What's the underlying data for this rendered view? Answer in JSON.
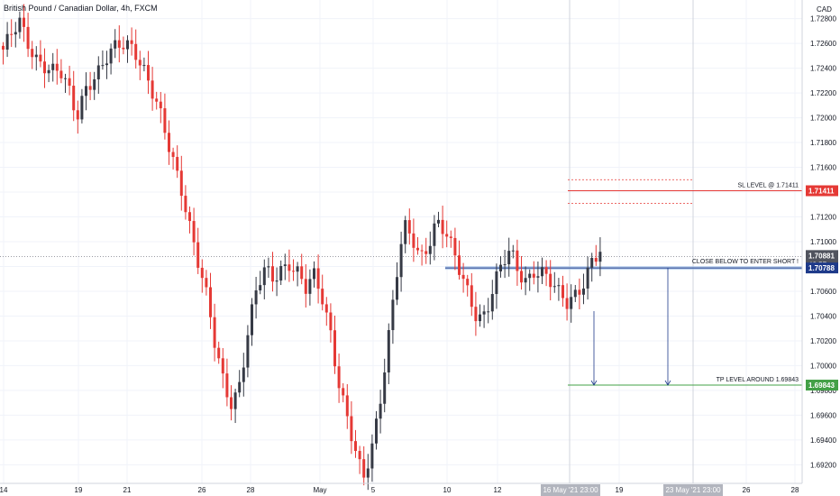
{
  "chart": {
    "title": "British Pound / Canadian Dollar, 4h, FXCM",
    "currency_label": "CAD"
  },
  "annotations": {
    "sl_label": "SL LEVEL @ 1.71411",
    "entry_label": "CLOSE BELOW TO ENTER SHORT !",
    "tp_label": "TP LEVEL AROUND 1.69843"
  },
  "price_tags": {
    "sl": "1.71411",
    "current": "1.70881",
    "countdown": "43:57",
    "entry": "1.70788",
    "tp": "1.69843"
  },
  "date_tags": [
    "16 May '21  23:00",
    "23 May '21  23:00"
  ],
  "colors": {
    "bull": "#363a45",
    "bear": "#e53935",
    "grid": "#f0f3fa",
    "sl": "#e53935",
    "entry": "#1e3a8a",
    "tp": "#43a047",
    "tag_grey": "#50535e"
  },
  "chart_data": {
    "type": "candlestick",
    "title": "British Pound / Canadian Dollar, 4h, FXCM",
    "ylabel": "CAD",
    "ylim": [
      1.6905,
      1.7295
    ],
    "y_ticks": [
      "1.72800",
      "1.72600",
      "1.72400",
      "1.72200",
      "1.72000",
      "1.71800",
      "1.71600",
      "1.71400",
      "1.71200",
      "1.71000",
      "1.70800",
      "1.70600",
      "1.70400",
      "1.70200",
      "1.70000",
      "1.69800",
      "1.69600",
      "1.69400",
      "1.69200"
    ],
    "x_tick_labels": [
      "14",
      "19",
      "21",
      "26",
      "28",
      "May",
      "5",
      "10",
      "12",
      "19",
      "26",
      "28"
    ],
    "levels": [
      {
        "label": "SL LEVEL @ 1.71411",
        "value": 1.71411
      },
      {
        "label": "CLOSE BELOW TO ENTER SHORT !",
        "value": 1.70788
      },
      {
        "label": "TP LEVEL AROUND 1.69843",
        "value": 1.69843
      }
    ],
    "current_price": 1.70881,
    "anchors": [
      [
        1.7255,
        1.7265,
        1.7275,
        1.726,
        1.725
      ],
      [
        1.7245,
        1.7238,
        1.7235,
        1.722,
        1.72,
        1.7225,
        1.7235,
        1.724,
        1.725,
        1.7255
      ],
      [
        1.726,
        1.7258,
        1.7245,
        1.7225,
        1.7205,
        1.718,
        1.716,
        1.714,
        1.711,
        1.708
      ],
      [
        1.705,
        1.701,
        1.6985,
        1.697,
        1.699,
        1.703,
        1.706,
        1.7075,
        1.707,
        1.708
      ],
      [
        1.7085,
        1.7075,
        1.706,
        1.707,
        1.7055,
        1.703,
        1.699,
        1.696,
        1.693,
        1.6905
      ],
      [
        1.693,
        1.697,
        1.702,
        1.707,
        1.711,
        1.71,
        1.7085,
        1.71,
        1.712,
        1.711
      ],
      [
        1.709,
        1.707,
        1.7055,
        1.704,
        1.7045,
        1.7065,
        1.708,
        1.709,
        1.7075,
        1.707
      ],
      [
        1.708,
        1.7075,
        1.7065,
        1.7055,
        1.705,
        1.706,
        1.707,
        1.7085,
        1.709
      ]
    ]
  }
}
